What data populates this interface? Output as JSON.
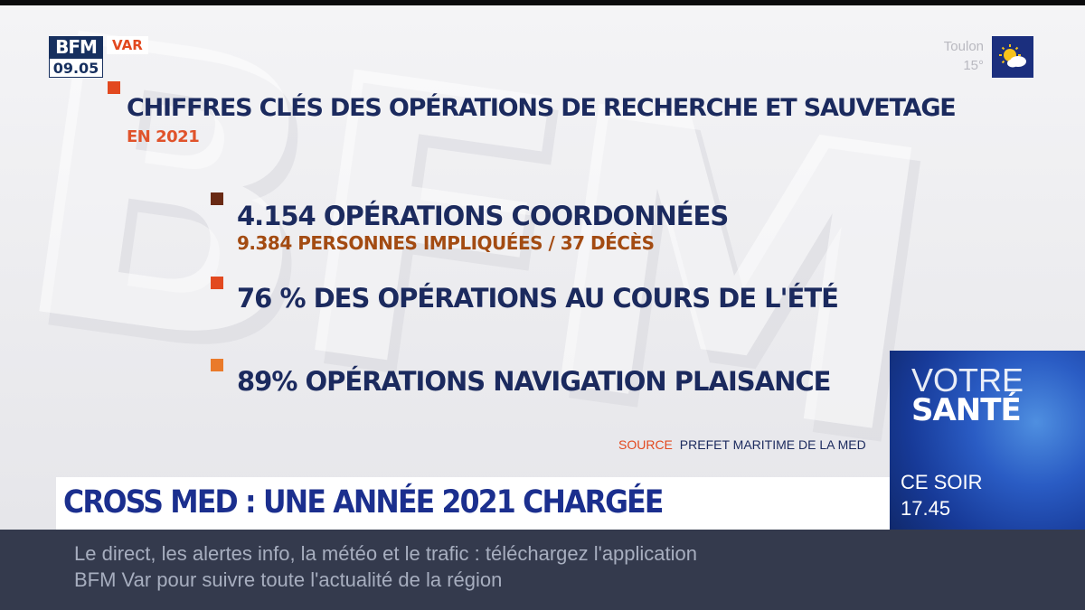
{
  "channel": {
    "logo": "BFM",
    "time": "09.05",
    "region": "VAR"
  },
  "weather": {
    "city": "Toulon",
    "temp": "15°",
    "icon": "sun-cloud-icon"
  },
  "graphic": {
    "title": "CHIFFRES CLÉS DES OPÉRATIONS DE RECHERCHE ET SAUVETAGE",
    "subtitle": "EN 2021",
    "stats": [
      {
        "main": "4.154 OPÉRATIONS COORDONNÉES",
        "sub": "9.384 PERSONNES IMPLIQUÉES / 37 DÉCÈS"
      },
      {
        "main": "76 % DES OPÉRATIONS AU COURS DE L'ÉTÉ"
      },
      {
        "main": "89% OPÉRATIONS NAVIGATION PLAISANCE"
      }
    ],
    "source_label": "SOURCE",
    "source_text": "PREFET MARITIME DE LA MED"
  },
  "headline": "CROSS MED : UNE ANNÉE 2021 CHARGÉE",
  "promo": {
    "line1": "VOTRE",
    "line2": "SANTÉ",
    "when": "CE SOIR",
    "time": "17.45"
  },
  "ticker": {
    "line1": "Le direct, les alertes info, la météo et le trafic : téléchargez l'application",
    "line2": "BFM Var pour suivre toute l'actualité de la région"
  },
  "colors": {
    "navy": "#1b2a5e",
    "orange_red": "#e2491f",
    "brown": "#a34b12",
    "ticker_bg": "#343a4d"
  }
}
